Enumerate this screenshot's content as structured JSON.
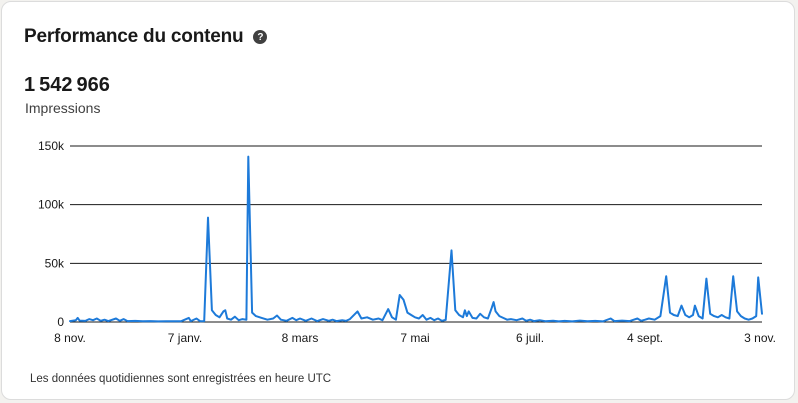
{
  "card": {
    "title": "Performance du contenu",
    "help_icon": "question-circle-icon",
    "metric_value": "1542966",
    "metric_label": "Impressions",
    "footnote": "Les données quotidiennes sont enregistrées en heure UTC"
  },
  "colors": {
    "line": "#1d7ad9",
    "grid": "#1a1a1a",
    "text": "#191919"
  },
  "chart_data": {
    "type": "line",
    "title": "",
    "xlabel": "",
    "ylabel": "",
    "grid": true,
    "ylim": [
      0,
      150000
    ],
    "y_ticks": [
      0,
      50000,
      100000,
      150000
    ],
    "y_tick_labels": [
      "0",
      "50k",
      "100k",
      "150k"
    ],
    "x_tick_labels": [
      "8 nov.",
      "7 janv.",
      "8 mars",
      "7 mai",
      "6 juil.",
      "4 sept.",
      "3 nov."
    ],
    "x_range_days": [
      0,
      361
    ],
    "x_tick_days": [
      0,
      60,
      120,
      180,
      240,
      300,
      360
    ],
    "series": [
      {
        "name": "",
        "points": [
          [
            0,
            800
          ],
          [
            3,
            1500
          ],
          [
            4,
            3500
          ],
          [
            5,
            1200
          ],
          [
            8,
            900
          ],
          [
            10,
            2500
          ],
          [
            12,
            1500
          ],
          [
            14,
            3000
          ],
          [
            16,
            1000
          ],
          [
            18,
            2000
          ],
          [
            20,
            800
          ],
          [
            24,
            3000
          ],
          [
            26,
            1000
          ],
          [
            28,
            2500
          ],
          [
            30,
            800
          ],
          [
            34,
            900
          ],
          [
            38,
            600
          ],
          [
            42,
            800
          ],
          [
            46,
            500
          ],
          [
            50,
            700
          ],
          [
            54,
            600
          ],
          [
            58,
            700
          ],
          [
            62,
            3500
          ],
          [
            63,
            800
          ],
          [
            66,
            3000
          ],
          [
            68,
            600
          ],
          [
            70,
            800
          ],
          [
            72,
            89000
          ],
          [
            74,
            10000
          ],
          [
            76,
            6000
          ],
          [
            78,
            4000
          ],
          [
            80,
            9000
          ],
          [
            81,
            10000
          ],
          [
            82,
            3000
          ],
          [
            84,
            2000
          ],
          [
            86,
            4500
          ],
          [
            88,
            1500
          ],
          [
            90,
            2500
          ],
          [
            92,
            2000
          ],
          [
            93,
            141000
          ],
          [
            95,
            8000
          ],
          [
            97,
            5000
          ],
          [
            100,
            3500
          ],
          [
            103,
            2000
          ],
          [
            106,
            3000
          ],
          [
            108,
            5500
          ],
          [
            110,
            2000
          ],
          [
            113,
            1000
          ],
          [
            116,
            3500
          ],
          [
            118,
            1500
          ],
          [
            120,
            3000
          ],
          [
            123,
            1000
          ],
          [
            126,
            3000
          ],
          [
            129,
            800
          ],
          [
            132,
            2500
          ],
          [
            135,
            1000
          ],
          [
            137,
            2000
          ],
          [
            139,
            800
          ],
          [
            142,
            1500
          ],
          [
            144,
            900
          ],
          [
            146,
            2500
          ],
          [
            150,
            9000
          ],
          [
            152,
            3000
          ],
          [
            155,
            4000
          ],
          [
            158,
            2000
          ],
          [
            161,
            3000
          ],
          [
            163,
            1500
          ],
          [
            166,
            11000
          ],
          [
            168,
            4000
          ],
          [
            170,
            2000
          ],
          [
            172,
            23000
          ],
          [
            174,
            19000
          ],
          [
            176,
            8000
          ],
          [
            178,
            6000
          ],
          [
            180,
            4000
          ],
          [
            182,
            3000
          ],
          [
            184,
            6000
          ],
          [
            186,
            2000
          ],
          [
            188,
            3500
          ],
          [
            190,
            1500
          ],
          [
            192,
            3000
          ],
          [
            194,
            1000
          ],
          [
            196,
            1800
          ],
          [
            199,
            61000
          ],
          [
            201,
            10000
          ],
          [
            203,
            6000
          ],
          [
            205,
            4000
          ],
          [
            206,
            10000
          ],
          [
            207,
            5000
          ],
          [
            208,
            9000
          ],
          [
            210,
            3500
          ],
          [
            212,
            3000
          ],
          [
            214,
            7000
          ],
          [
            216,
            4000
          ],
          [
            218,
            3000
          ],
          [
            220,
            12000
          ],
          [
            221,
            17000
          ],
          [
            222,
            9000
          ],
          [
            224,
            5000
          ],
          [
            226,
            3500
          ],
          [
            228,
            2000
          ],
          [
            230,
            2500
          ],
          [
            233,
            1500
          ],
          [
            236,
            3000
          ],
          [
            238,
            1000
          ],
          [
            240,
            2000
          ],
          [
            242,
            800
          ],
          [
            245,
            1500
          ],
          [
            248,
            700
          ],
          [
            252,
            1000
          ],
          [
            255,
            500
          ],
          [
            258,
            900
          ],
          [
            262,
            500
          ],
          [
            266,
            1200
          ],
          [
            270,
            600
          ],
          [
            274,
            900
          ],
          [
            278,
            500
          ],
          [
            282,
            3000
          ],
          [
            284,
            800
          ],
          [
            288,
            1200
          ],
          [
            292,
            800
          ],
          [
            296,
            3000
          ],
          [
            298,
            1000
          ],
          [
            300,
            2000
          ],
          [
            302,
            3000
          ],
          [
            305,
            2000
          ],
          [
            308,
            5000
          ],
          [
            311,
            39000
          ],
          [
            313,
            8000
          ],
          [
            315,
            6000
          ],
          [
            317,
            5000
          ],
          [
            319,
            14000
          ],
          [
            321,
            6000
          ],
          [
            323,
            4000
          ],
          [
            325,
            6000
          ],
          [
            326,
            14000
          ],
          [
            328,
            5000
          ],
          [
            330,
            3000
          ],
          [
            332,
            37000
          ],
          [
            334,
            7000
          ],
          [
            336,
            5000
          ],
          [
            338,
            4000
          ],
          [
            340,
            6000
          ],
          [
            342,
            4000
          ],
          [
            344,
            3000
          ],
          [
            346,
            39000
          ],
          [
            348,
            9000
          ],
          [
            350,
            5000
          ],
          [
            352,
            3000
          ],
          [
            354,
            2000
          ],
          [
            356,
            3000
          ],
          [
            358,
            5000
          ],
          [
            359,
            38000
          ],
          [
            361,
            7000
          ]
        ]
      }
    ]
  }
}
